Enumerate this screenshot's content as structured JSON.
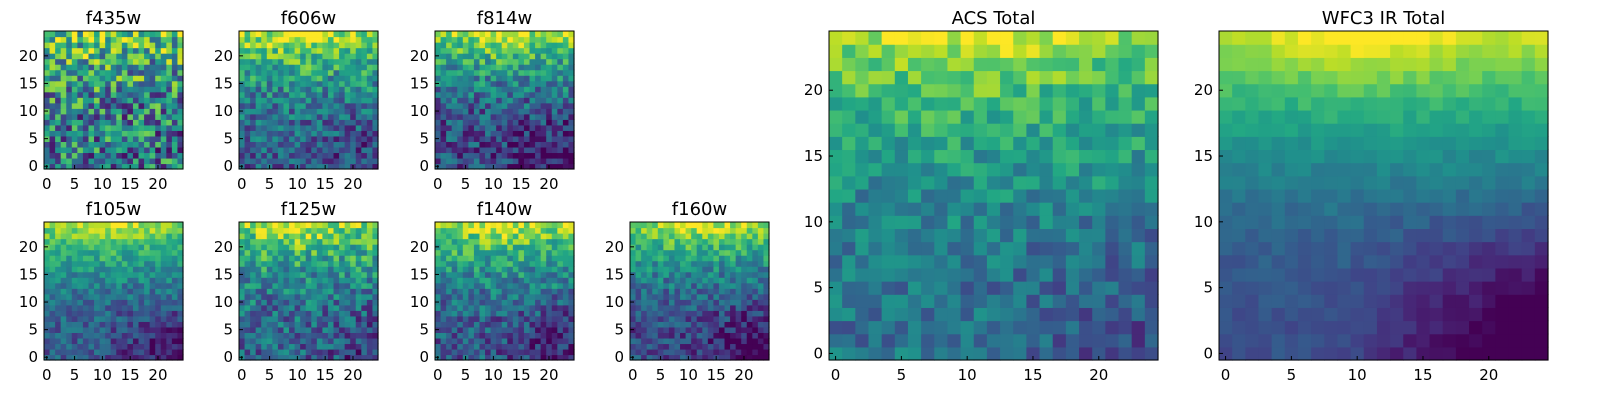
{
  "chart_data": {
    "type": "heatmap",
    "colormap": "viridis",
    "grid": false,
    "panels": [
      {
        "title": "f435w",
        "xticks": [
          "0",
          "5",
          "10",
          "15",
          "20"
        ],
        "yticks": [
          "0",
          "5",
          "10",
          "15",
          "20"
        ],
        "xlim": [
          -0.5,
          24.5
        ],
        "ylim": [
          -0.5,
          24.5
        ],
        "description": "noisy map, high values scattered throughout, bright clumps near top"
      },
      {
        "title": "f606w",
        "xticks": [
          "0",
          "5",
          "10",
          "15",
          "20"
        ],
        "yticks": [
          "0",
          "5",
          "10",
          "15",
          "20"
        ],
        "xlim": [
          -0.5,
          24.5
        ],
        "ylim": [
          -0.5,
          24.5
        ]
      },
      {
        "title": "f814w",
        "xticks": [
          "0",
          "5",
          "10",
          "15",
          "20"
        ],
        "yticks": [
          "0",
          "5",
          "10",
          "15",
          "20"
        ],
        "xlim": [
          -0.5,
          24.5
        ],
        "ylim": [
          -0.5,
          24.5
        ]
      },
      {
        "title": "f105w",
        "xticks": [
          "0",
          "5",
          "10",
          "15",
          "20"
        ],
        "yticks": [
          "0",
          "5",
          "10",
          "15",
          "20"
        ],
        "xlim": [
          -0.5,
          24.5
        ],
        "ylim": [
          -0.5,
          24.5
        ]
      },
      {
        "title": "f125w",
        "xticks": [
          "0",
          "5",
          "10",
          "15",
          "20"
        ],
        "yticks": [
          "0",
          "5",
          "10",
          "15",
          "20"
        ],
        "xlim": [
          -0.5,
          24.5
        ],
        "ylim": [
          -0.5,
          24.5
        ]
      },
      {
        "title": "f140w",
        "xticks": [
          "0",
          "5",
          "10",
          "15",
          "20"
        ],
        "yticks": [
          "0",
          "5",
          "10",
          "15",
          "20"
        ],
        "xlim": [
          -0.5,
          24.5
        ],
        "ylim": [
          -0.5,
          24.5
        ]
      },
      {
        "title": "f160w",
        "xticks": [
          "0",
          "5",
          "10",
          "15",
          "20"
        ],
        "yticks": [
          "0",
          "5",
          "10",
          "15",
          "20"
        ],
        "xlim": [
          -0.5,
          24.5
        ],
        "ylim": [
          -0.5,
          24.5
        ]
      },
      {
        "title": "ACS Total",
        "xticks": [
          "0",
          "5",
          "10",
          "15",
          "20"
        ],
        "yticks": [
          "0",
          "5",
          "10",
          "15",
          "20"
        ],
        "xlim": [
          -0.5,
          24.5
        ],
        "ylim": [
          -0.5,
          24.5
        ]
      },
      {
        "title": "WFC3 IR Total",
        "xticks": [
          "0",
          "5",
          "10",
          "15",
          "20"
        ],
        "yticks": [
          "0",
          "5",
          "10",
          "15",
          "20"
        ],
        "xlim": [
          -0.5,
          24.5
        ],
        "ylim": [
          -0.5,
          24.5
        ]
      }
    ]
  }
}
